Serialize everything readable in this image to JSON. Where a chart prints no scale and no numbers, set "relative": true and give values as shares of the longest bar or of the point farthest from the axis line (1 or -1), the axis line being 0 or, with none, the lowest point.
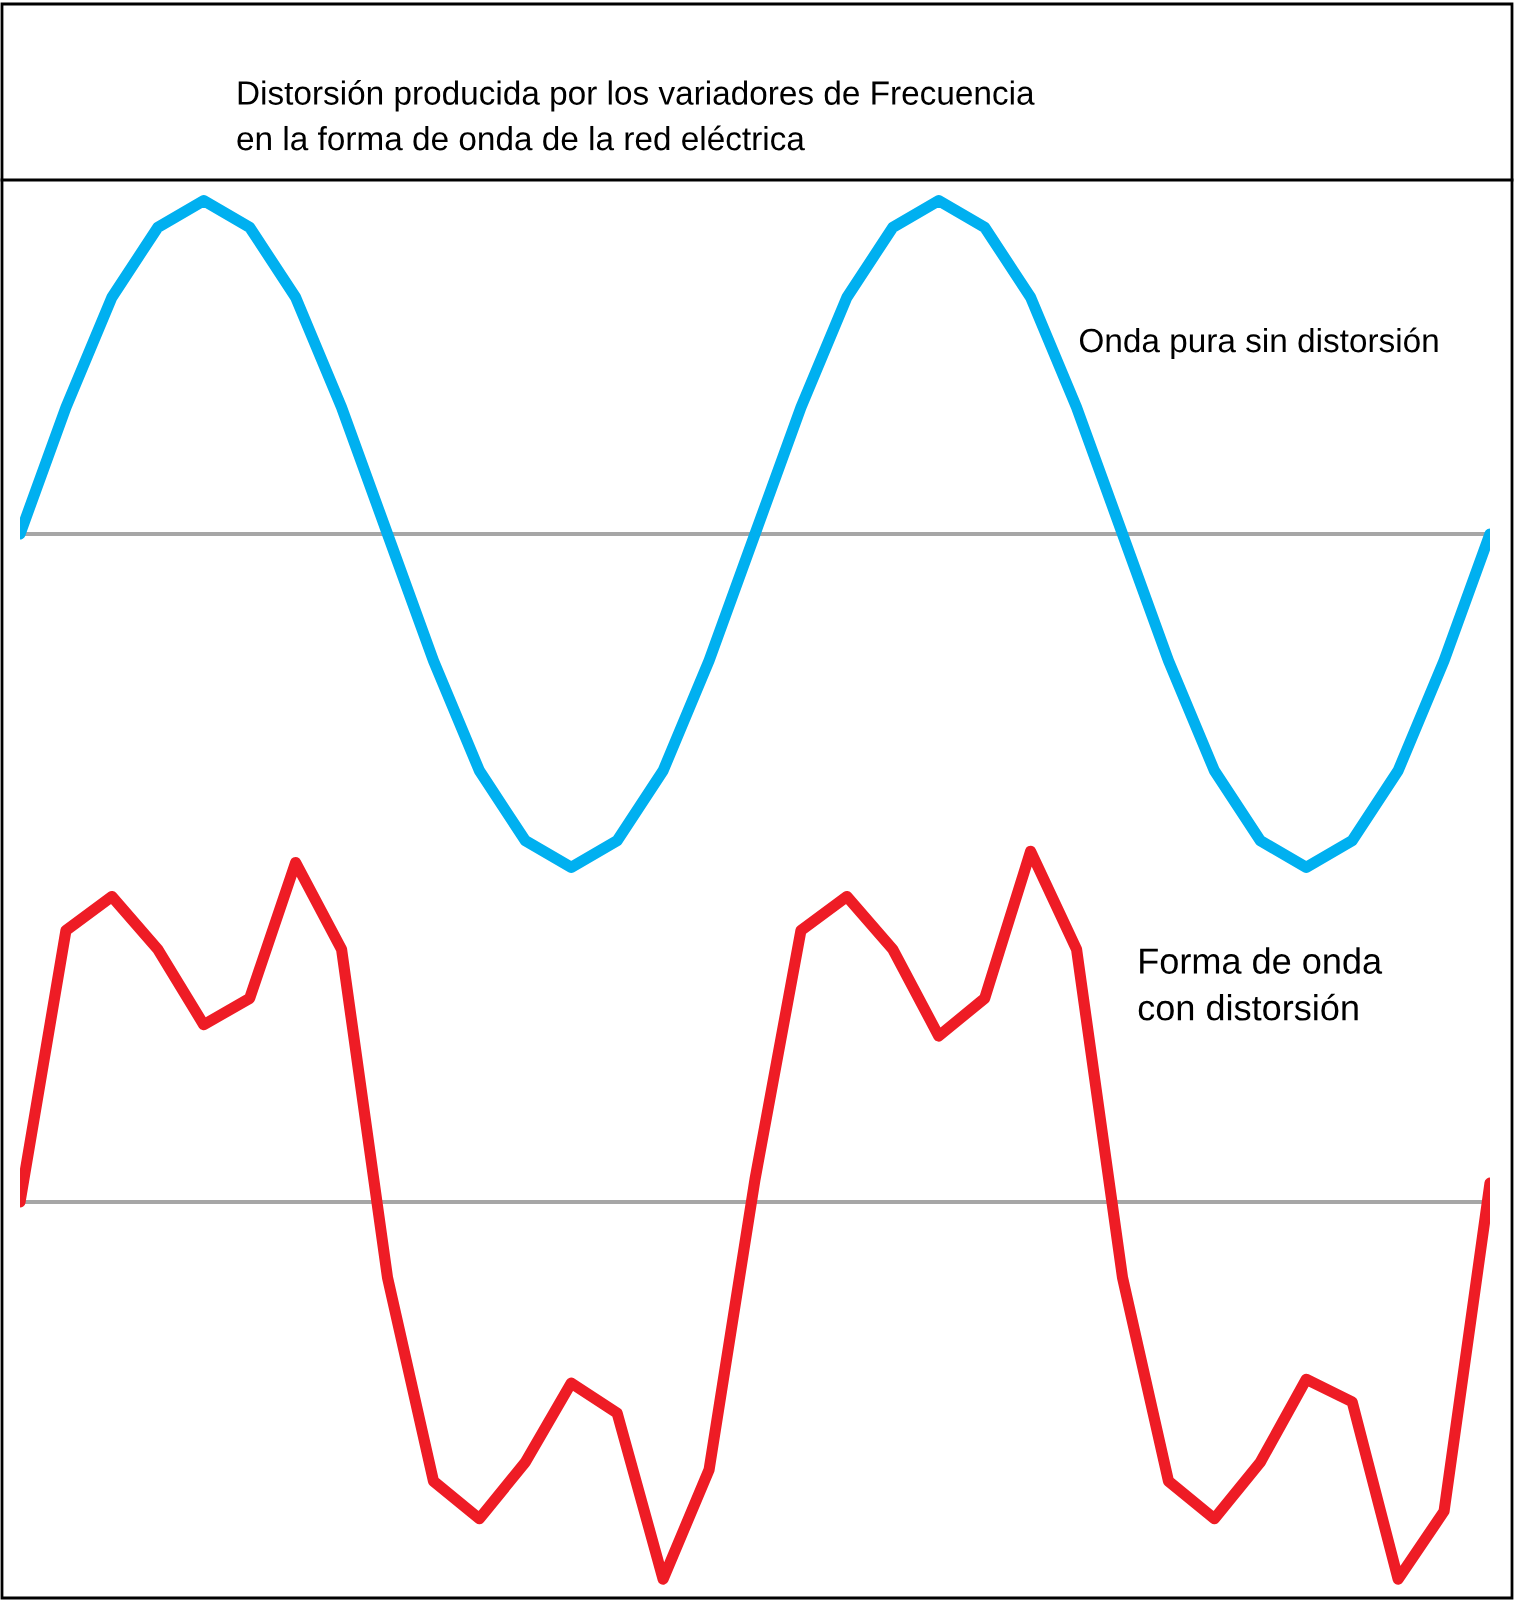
{
  "chart_data": [
    {
      "type": "line",
      "title": "Distorsión producida por los variadores de Frecuencia\nen la forma de onda de la red eléctrica",
      "relative": true,
      "categories": [
        null,
        null,
        null,
        null,
        null,
        null,
        null,
        null,
        null,
        null,
        null,
        null,
        null,
        null,
        null,
        null,
        null,
        null,
        null,
        null,
        null,
        null,
        null,
        null,
        null,
        null,
        null,
        null,
        null,
        null,
        null,
        null,
        null
      ],
      "series": [
        {
          "name": "Onda pura sin distorsión",
          "color": "#00b0f0",
          "values": [
            0,
            0.38,
            0.71,
            0.92,
            1,
            0.92,
            0.71,
            0.38,
            0,
            -0.38,
            -0.71,
            -0.92,
            -1,
            -0.92,
            -0.71,
            -0.38,
            0,
            0.38,
            0.71,
            0.92,
            1,
            0.92,
            0.71,
            0.38,
            0,
            -0.38,
            -0.71,
            -0.92,
            -1,
            -0.92,
            -0.71,
            -0.38,
            0
          ]
        }
      ]
    },
    {
      "type": "line",
      "relative": true,
      "categories": [
        null,
        null,
        null,
        null,
        null,
        null,
        null,
        null,
        null,
        null,
        null,
        null,
        null,
        null,
        null,
        null,
        null,
        null,
        null,
        null,
        null,
        null,
        null,
        null,
        null,
        null,
        null,
        null,
        null,
        null,
        null,
        null,
        null
      ],
      "series": [
        {
          "name": "Forma de onda\ncon distorsión",
          "color": "#ee1c25",
          "values": [
            0,
            0.72,
            0.81,
            0.67,
            0.47,
            0.54,
            0.9,
            0.67,
            -0.2,
            -0.74,
            -0.84,
            -0.69,
            -0.48,
            -0.56,
            -1,
            -0.71,
            0.06,
            0.72,
            0.81,
            0.67,
            0.44,
            0.54,
            0.93,
            0.67,
            -0.2,
            -0.74,
            -0.84,
            -0.69,
            -0.47,
            -0.53,
            -1,
            -0.82,
            0.05
          ]
        }
      ]
    }
  ]
}
